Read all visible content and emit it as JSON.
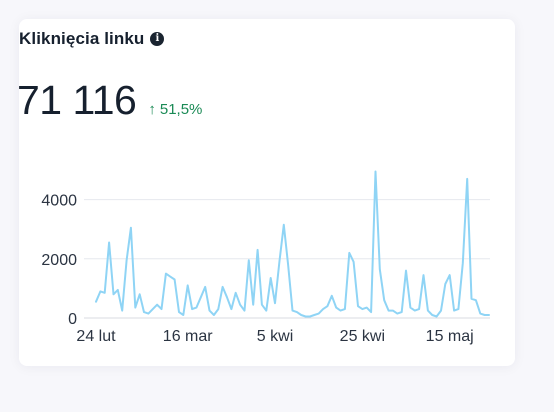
{
  "card": {
    "title": "Kliknięcia linku",
    "total": "71 116",
    "change": "51,5%",
    "change_color": "#1a8a55"
  },
  "chart_data": {
    "type": "line",
    "line_color": "#8fd4f5",
    "grid": true,
    "ylim": [
      0,
      5000
    ],
    "yticks": [
      0,
      2000,
      4000
    ],
    "ytick_labels": [
      "0",
      "2000",
      "4000"
    ],
    "x_start": "2024-02-24",
    "xticks": [
      "24 lut",
      "16 mar",
      "5 kwi",
      "25 kwi",
      "15 maj"
    ],
    "xtick_positions": [
      "2024-02-24",
      "2024-03-16",
      "2024-04-05",
      "2024-04-25",
      "2024-05-15"
    ],
    "series": [
      {
        "values": [
          550,
          900,
          850,
          2550,
          800,
          950,
          250,
          1950,
          3050,
          350,
          800,
          200,
          150,
          300,
          450,
          300,
          1500,
          1400,
          1300,
          200,
          100,
          1100,
          300,
          350,
          700,
          1050,
          250,
          100,
          300,
          1050,
          700,
          300,
          850,
          450,
          250,
          1950,
          450,
          2300,
          450,
          250,
          1350,
          500,
          1900,
          3150,
          1800,
          250,
          200,
          100,
          50,
          50,
          100,
          150,
          300,
          400,
          750,
          350,
          250,
          300,
          2200,
          1900,
          400,
          300,
          350,
          200,
          4950,
          1650,
          600,
          250,
          250,
          150,
          200,
          1600,
          350,
          250,
          300,
          1450,
          250,
          100,
          50,
          250,
          1150,
          1450,
          250,
          300,
          1850,
          4700,
          650,
          600,
          150,
          100,
          100
        ]
      }
    ]
  }
}
